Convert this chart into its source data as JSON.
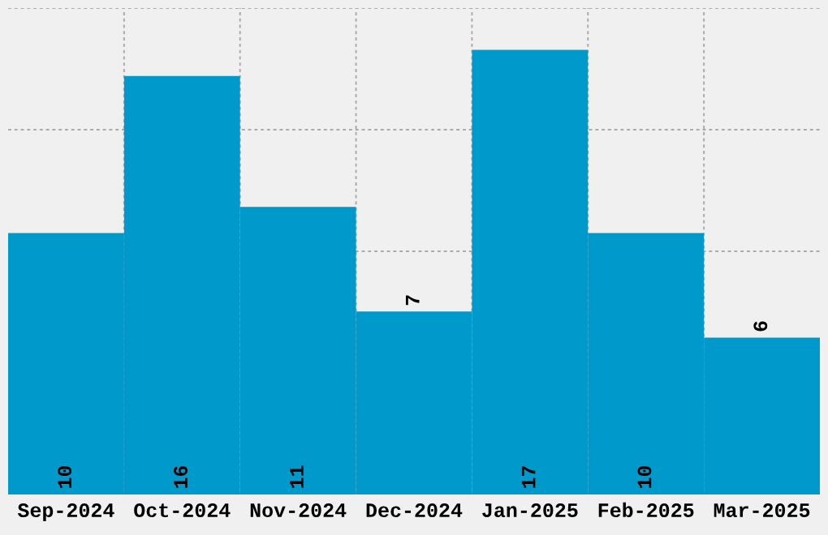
{
  "chart_data": {
    "type": "bar",
    "categories": [
      "Sep-2024",
      "Oct-2024",
      "Nov-2024",
      "Dec-2024",
      "Jan-2025",
      "Feb-2025",
      "Mar-2025"
    ],
    "values": [
      10,
      16,
      11,
      7,
      17,
      10,
      6
    ],
    "color": "#0099cc",
    "data_labels": true,
    "ylim": [
      0,
      18.6
    ],
    "tick_labels": "x",
    "grid": true
  }
}
